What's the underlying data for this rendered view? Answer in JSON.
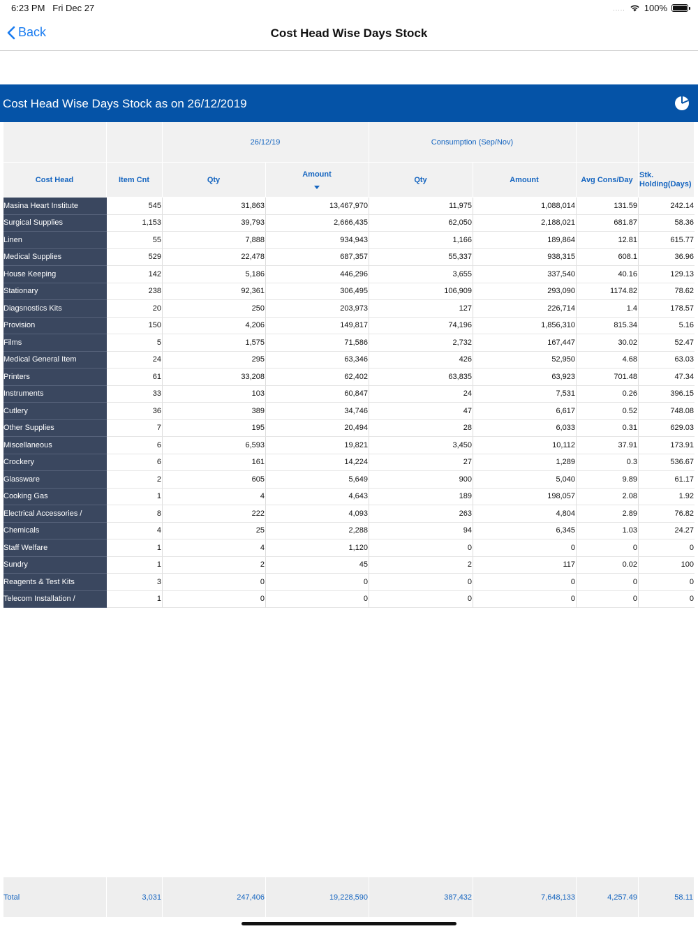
{
  "status_bar": {
    "time": "6:23 PM",
    "date": "Fri Dec 27",
    "battery": "100%",
    "signal_dots": "....."
  },
  "nav": {
    "back_label": "Back",
    "title": "Cost Head Wise Days Stock"
  },
  "banner": {
    "title": "Cost Head Wise Days Stock as on 26/12/2019",
    "icon": "pie-chart-icon"
  },
  "colors": {
    "banner": "#0553a7",
    "name_column": "#3a475f",
    "header_text": "#1565c0",
    "link": "#1a7cf0"
  },
  "header_groups": {
    "blank": "",
    "stock_group": "26/12/19",
    "consumption_group": "Consumption (Sep/Nov)"
  },
  "columns": {
    "cost_head": "Cost Head",
    "item_cnt": "Item Cnt",
    "qty": "Qty",
    "amount": "Amount",
    "cons_qty": "Qty",
    "cons_amount": "Amount",
    "avg_cons_day": "Avg Cons/Day",
    "stk_line1": "Stk.",
    "stk_line2": "Holding(Days)"
  },
  "rows": [
    [
      "Masina Heart Institute",
      "545",
      "31,863",
      "13,467,970",
      "11,975",
      "1,088,014",
      "131.59",
      "242.14"
    ],
    [
      "Surgical Supplies",
      "1,153",
      "39,793",
      "2,666,435",
      "62,050",
      "2,188,021",
      "681.87",
      "58.36"
    ],
    [
      "Linen",
      "55",
      "7,888",
      "934,943",
      "1,166",
      "189,864",
      "12.81",
      "615.77"
    ],
    [
      "Medical Supplies",
      "529",
      "22,478",
      "687,357",
      "55,337",
      "938,315",
      "608.1",
      "36.96"
    ],
    [
      "House Keeping",
      "142",
      "5,186",
      "446,296",
      "3,655",
      "337,540",
      "40.16",
      "129.13"
    ],
    [
      "Stationary",
      "238",
      "92,361",
      "306,495",
      "106,909",
      "293,090",
      "1174.82",
      "78.62"
    ],
    [
      "Diagsnostics Kits",
      "20",
      "250",
      "203,973",
      "127",
      "226,714",
      "1.4",
      "178.57"
    ],
    [
      "Provision",
      "150",
      "4,206",
      "149,817",
      "74,196",
      "1,856,310",
      "815.34",
      "5.16"
    ],
    [
      "Films",
      "5",
      "1,575",
      "71,586",
      "2,732",
      "167,447",
      "30.02",
      "52.47"
    ],
    [
      "Medical General Item",
      "24",
      "295",
      "63,346",
      "426",
      "52,950",
      "4.68",
      "63.03"
    ],
    [
      "Printers",
      "61",
      "33,208",
      "62,402",
      "63,835",
      "63,923",
      "701.48",
      "47.34"
    ],
    [
      "Instruments",
      "33",
      "103",
      "60,847",
      "24",
      "7,531",
      "0.26",
      "396.15"
    ],
    [
      "Cutlery",
      "36",
      "389",
      "34,746",
      "47",
      "6,617",
      "0.52",
      "748.08"
    ],
    [
      "Other Supplies",
      "7",
      "195",
      "20,494",
      "28",
      "6,033",
      "0.31",
      "629.03"
    ],
    [
      "Miscellaneous",
      "6",
      "6,593",
      "19,821",
      "3,450",
      "10,112",
      "37.91",
      "173.91"
    ],
    [
      "Crockery",
      "6",
      "161",
      "14,224",
      "27",
      "1,289",
      "0.3",
      "536.67"
    ],
    [
      "Glassware",
      "2",
      "605",
      "5,649",
      "900",
      "5,040",
      "9.89",
      "61.17"
    ],
    [
      "Cooking Gas",
      "1",
      "4",
      "4,643",
      "189",
      "198,057",
      "2.08",
      "1.92"
    ],
    [
      "Electrical Accessories /",
      "8",
      "222",
      "4,093",
      "263",
      "4,804",
      "2.89",
      "76.82"
    ],
    [
      "Chemicals",
      "4",
      "25",
      "2,288",
      "94",
      "6,345",
      "1.03",
      "24.27"
    ],
    [
      "Staff Welfare",
      "1",
      "4",
      "1,120",
      "0",
      "0",
      "0",
      "0"
    ],
    [
      "Sundry",
      "1",
      "2",
      "45",
      "2",
      "117",
      "0.02",
      "100"
    ],
    [
      "Reagents & Test Kits",
      "3",
      "0",
      "0",
      "0",
      "0",
      "0",
      "0"
    ],
    [
      "Telecom Installation /",
      "1",
      "0",
      "0",
      "0",
      "0",
      "0",
      "0"
    ]
  ],
  "total": [
    "Total",
    "3,031",
    "247,406",
    "19,228,590",
    "387,432",
    "7,648,133",
    "4,257.49",
    "58.11"
  ]
}
